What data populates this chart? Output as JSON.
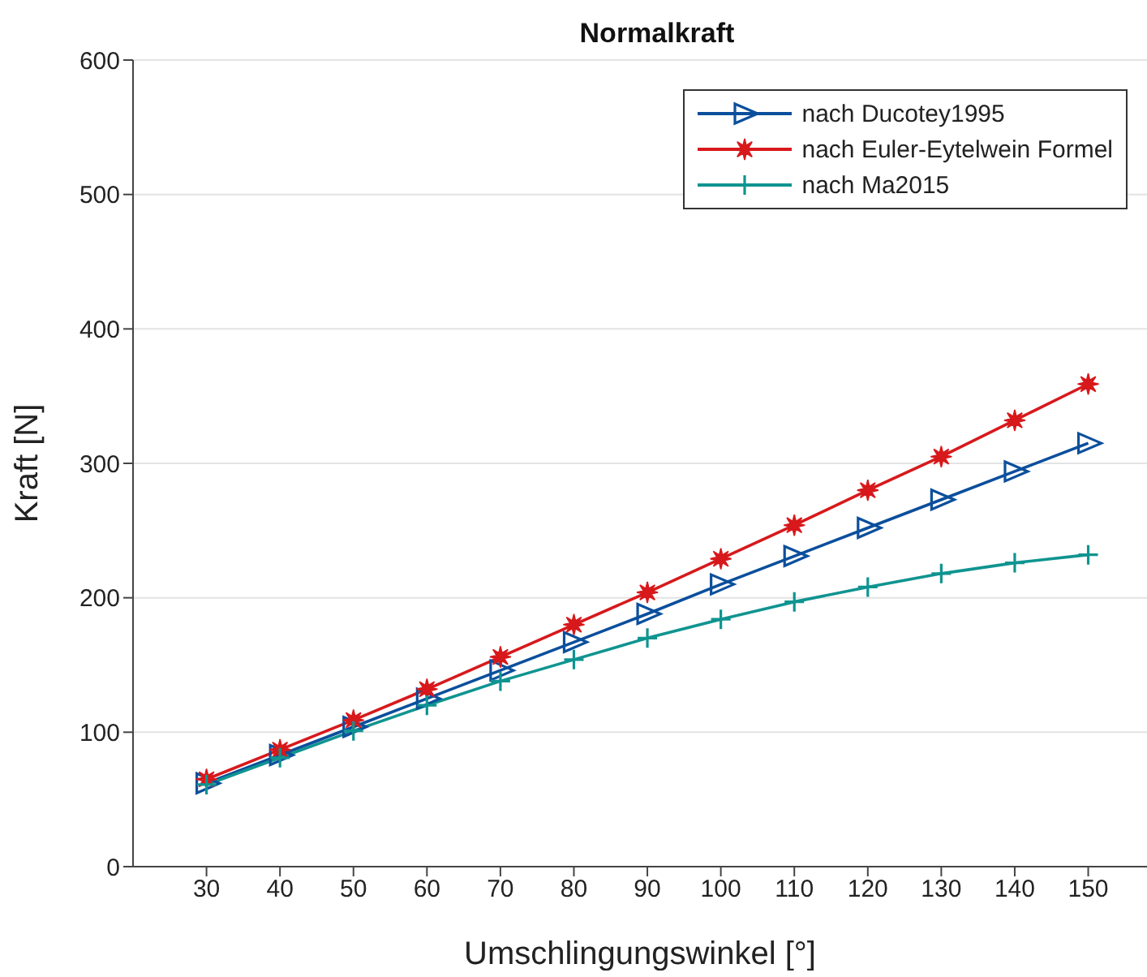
{
  "chart_data": {
    "type": "line",
    "title": "Normalkraft",
    "xlabel": "Umschlingungswinkel [°]",
    "ylabel": "Kraft [N]",
    "x": [
      30,
      40,
      50,
      60,
      70,
      80,
      90,
      100,
      110,
      120,
      130,
      140,
      150
    ],
    "series": [
      {
        "name": "nach Ducotey1995",
        "color": "#0b4f9c",
        "marker": "triangle",
        "values": [
          62,
          83,
          104,
          125,
          146,
          167,
          188,
          210,
          231,
          252,
          273,
          294,
          315
        ]
      },
      {
        "name": "nach Euler-Eytelwein Formel",
        "color": "#d7191c",
        "marker": "star",
        "values": [
          65,
          87,
          109,
          132,
          156,
          180,
          204,
          229,
          254,
          280,
          305,
          332,
          359
        ]
      },
      {
        "name": "nach Ma2015",
        "color": "#0f9490",
        "marker": "cross",
        "values": [
          61,
          81,
          101,
          120,
          138,
          154,
          170,
          184,
          197,
          208,
          218,
          226,
          232
        ]
      }
    ],
    "xlim": [
      20,
      158
    ],
    "xticks": [
      30,
      40,
      50,
      60,
      70,
      80,
      90,
      100,
      110,
      120,
      130,
      140,
      150
    ],
    "ylim": [
      0,
      600
    ],
    "yticks": [
      0,
      100,
      200,
      300,
      400,
      500,
      600
    ],
    "grid": "y",
    "legend": "top right",
    "line_style": "solid"
  }
}
